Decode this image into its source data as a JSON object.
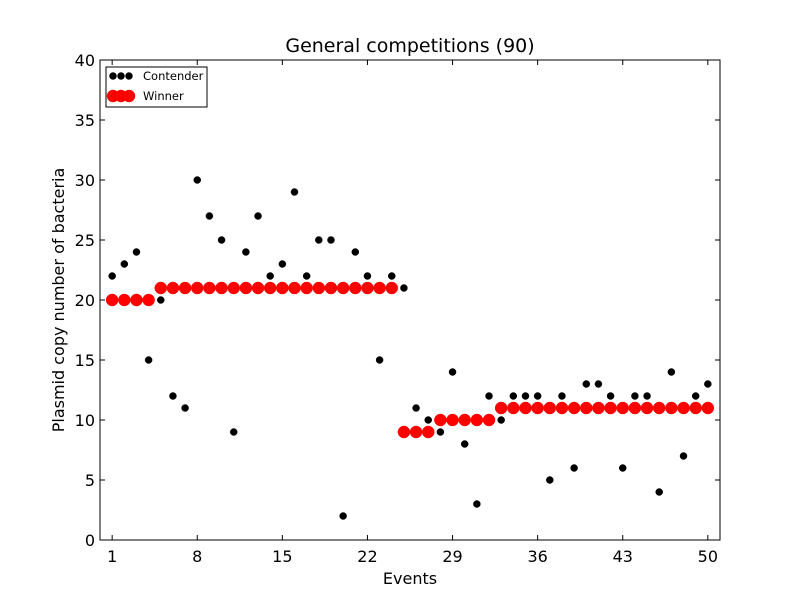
{
  "chart_data": {
    "type": "scatter",
    "title": "General competitions (90)",
    "xlabel": "Events",
    "ylabel": "Plasmid copy number of bacteria",
    "xlim": [
      0,
      51
    ],
    "ylim": [
      0,
      40
    ],
    "xticks": [
      1,
      8,
      15,
      22,
      29,
      36,
      43,
      50
    ],
    "yticks": [
      0,
      5,
      10,
      15,
      20,
      25,
      30,
      35,
      40
    ],
    "grid": false,
    "legend_position": "top-left",
    "series": [
      {
        "name": "Contender",
        "color": "#000000",
        "x": [
          1,
          2,
          3,
          4,
          5,
          6,
          7,
          8,
          9,
          10,
          11,
          12,
          13,
          14,
          15,
          16,
          17,
          18,
          19,
          20,
          21,
          22,
          23,
          24,
          25,
          26,
          27,
          28,
          29,
          30,
          31,
          32,
          33,
          34,
          35,
          36,
          37,
          38,
          39,
          40,
          41,
          42,
          43,
          44,
          45,
          46,
          47,
          48,
          49,
          50
        ],
        "y": [
          22,
          23,
          24,
          15,
          20,
          12,
          11,
          30,
          27,
          25,
          9,
          24,
          27,
          22,
          23,
          29,
          22,
          25,
          25,
          2,
          24,
          22,
          15,
          22,
          21,
          11,
          10,
          9,
          14,
          8,
          3,
          12,
          10,
          12,
          12,
          12,
          5,
          12,
          6,
          13,
          13,
          12,
          6,
          12,
          12,
          4,
          14,
          7,
          12,
          13
        ]
      },
      {
        "name": "Winner",
        "color": "#ff0000",
        "x": [
          1,
          2,
          3,
          4,
          5,
          6,
          7,
          8,
          9,
          10,
          11,
          12,
          13,
          14,
          15,
          16,
          17,
          18,
          19,
          20,
          21,
          22,
          23,
          24,
          25,
          26,
          27,
          28,
          29,
          30,
          31,
          32,
          33,
          34,
          35,
          36,
          37,
          38,
          39,
          40,
          41,
          42,
          43,
          44,
          45,
          46,
          47,
          48,
          49,
          50
        ],
        "y": [
          20,
          20,
          20,
          20,
          21,
          21,
          21,
          21,
          21,
          21,
          21,
          21,
          21,
          21,
          21,
          21,
          21,
          21,
          21,
          21,
          21,
          21,
          21,
          21,
          9,
          9,
          9,
          10,
          10,
          10,
          10,
          10,
          11,
          11,
          11,
          11,
          11,
          11,
          11,
          11,
          11,
          11,
          11,
          11,
          11,
          11,
          11,
          11,
          11,
          11
        ]
      }
    ]
  }
}
